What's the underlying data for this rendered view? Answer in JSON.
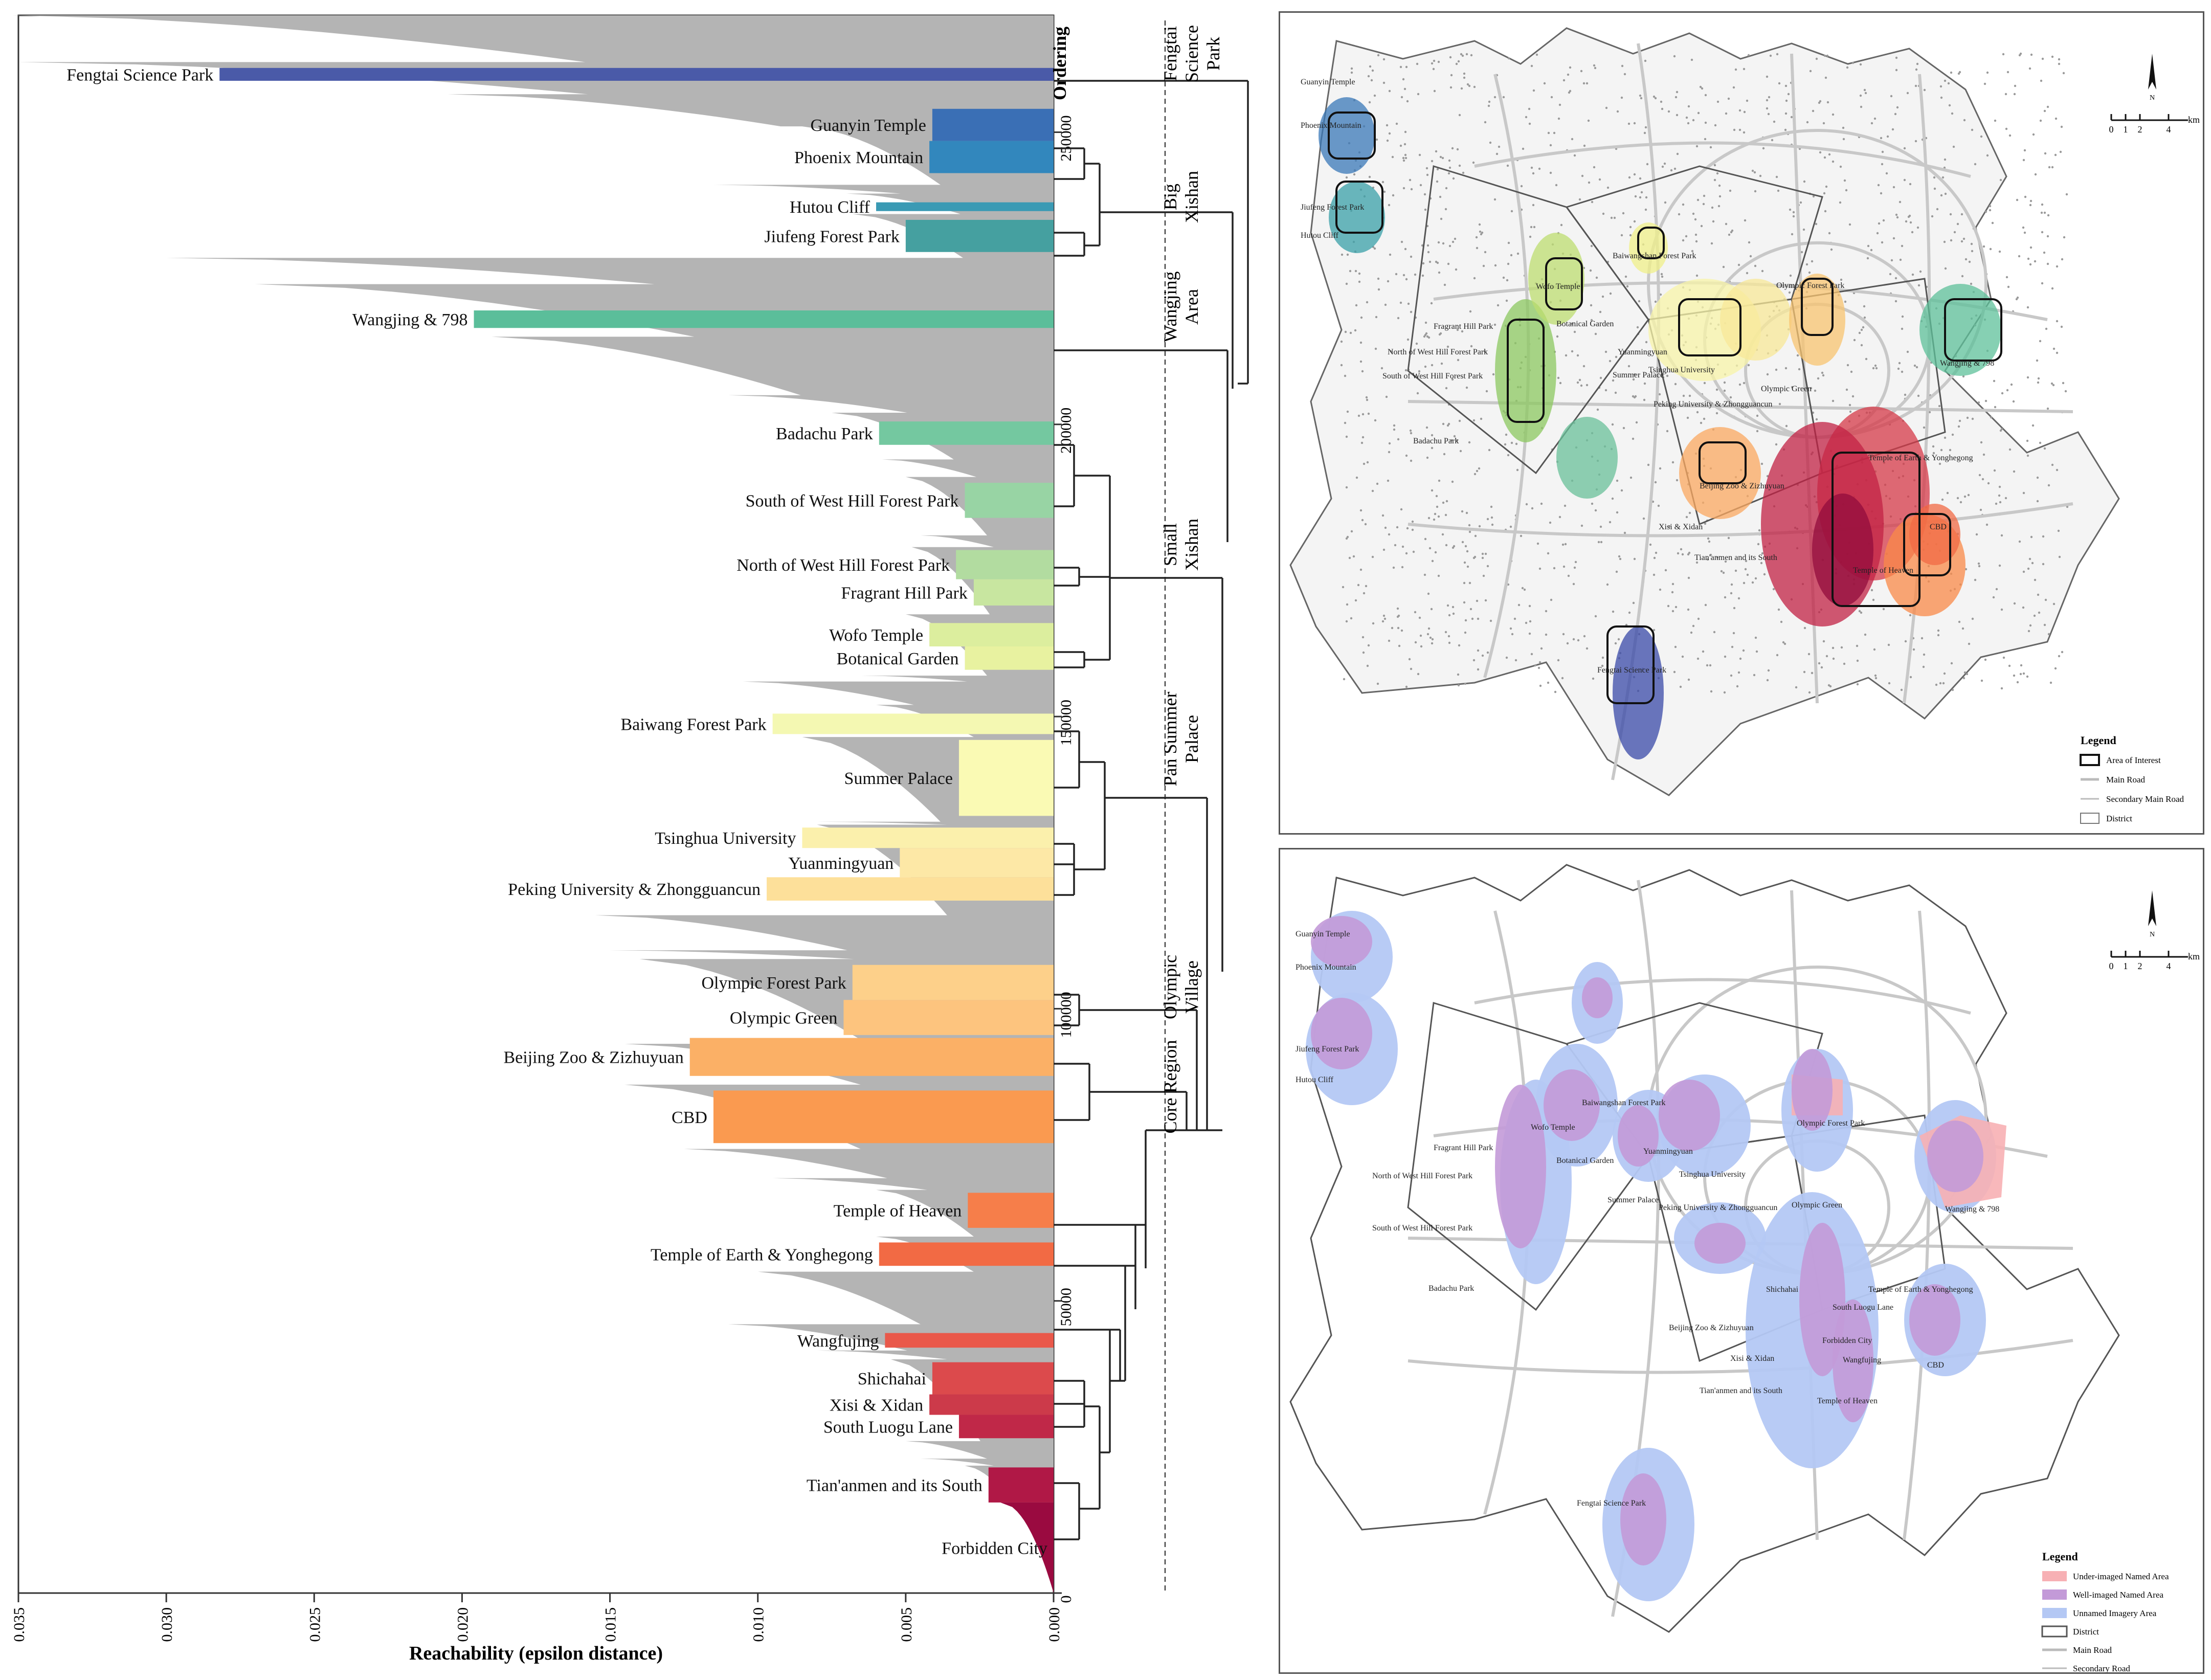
{
  "chart_data": {
    "type": "bar",
    "orientation": "horizontal",
    "xlabel": "Reachability (epsilon distance)",
    "xlim": [
      0.035,
      0.0
    ],
    "x_ticks": [
      "0.035",
      "0.030",
      "0.025",
      "0.020",
      "0.015",
      "0.010",
      "0.005",
      "0.000"
    ],
    "ordering_label": "Ordering",
    "ordering_ticks": [
      "0",
      "50000",
      "100000",
      "150000",
      "200000",
      "250000"
    ],
    "ordering_max": 270000,
    "background_color": "#b4b4b4",
    "clusters": [
      {
        "name": "Fengtai Science Park",
        "start": 258800,
        "end": 261000,
        "reach": 0.0282,
        "color": "#4a5aa8"
      },
      {
        "name": "Guanyin Temple",
        "start": 248500,
        "end": 254000,
        "reach": 0.0041,
        "color": "#3a6fb5"
      },
      {
        "name": "Phoenix Mountain",
        "start": 243000,
        "end": 248500,
        "reach": 0.0042,
        "color": "#3287bd"
      },
      {
        "name": "Hutou Cliff",
        "start": 236500,
        "end": 238000,
        "reach": 0.006,
        "color": "#3a9ab4"
      },
      {
        "name": "Jiufeng Forest Park",
        "start": 229500,
        "end": 235000,
        "reach": 0.005,
        "color": "#45a0a0"
      },
      {
        "name": "Wangjing & 798",
        "start": 216500,
        "end": 219500,
        "reach": 0.0196,
        "color": "#5bbe9a"
      },
      {
        "name": "Badachu Park",
        "start": 196500,
        "end": 200500,
        "reach": 0.0059,
        "color": "#74c8a0"
      },
      {
        "name": "South of West Hill Forest Park",
        "start": 184000,
        "end": 190000,
        "reach": 0.003,
        "color": "#98d4a4"
      },
      {
        "name": "North of West Hill Forest Park",
        "start": 173500,
        "end": 178500,
        "reach": 0.0033,
        "color": "#b2dca0"
      },
      {
        "name": "Fragrant Hill Park",
        "start": 169000,
        "end": 173500,
        "reach": 0.0027,
        "color": "#c8e6a0"
      },
      {
        "name": "Wofo Temple",
        "start": 162000,
        "end": 166000,
        "reach": 0.0042,
        "color": "#dcee9e"
      },
      {
        "name": "Botanical Garden",
        "start": 158000,
        "end": 162000,
        "reach": 0.003,
        "color": "#e8f2a0"
      },
      {
        "name": "Baiwang Forest Park",
        "start": 147000,
        "end": 150500,
        "reach": 0.0095,
        "color": "#f4f8b2"
      },
      {
        "name": "Summer Palace",
        "start": 133000,
        "end": 146000,
        "reach": 0.0032,
        "color": "#fafab4"
      },
      {
        "name": "Tsinghua University",
        "start": 127500,
        "end": 131000,
        "reach": 0.0085,
        "color": "#fbf0ac"
      },
      {
        "name": "Yuanmingyuan",
        "start": 122500,
        "end": 127500,
        "reach": 0.0052,
        "color": "#fde8a6"
      },
      {
        "name": "Peking University & Zhongguancun",
        "start": 118500,
        "end": 122500,
        "reach": 0.0097,
        "color": "#fde09a"
      },
      {
        "name": "Olympic Forest Park",
        "start": 101500,
        "end": 107500,
        "reach": 0.0068,
        "color": "#fdd08a"
      },
      {
        "name": "Olympic Green",
        "start": 95500,
        "end": 101500,
        "reach": 0.0071,
        "color": "#fdc47e"
      },
      {
        "name": "Beijing Zoo & Zizhuyuan",
        "start": 88500,
        "end": 95000,
        "reach": 0.0123,
        "color": "#fbb066"
      },
      {
        "name": "CBD",
        "start": 77000,
        "end": 86000,
        "reach": 0.0115,
        "color": "#fa9a50"
      },
      {
        "name": "Temple of Heaven",
        "start": 62500,
        "end": 68500,
        "reach": 0.0029,
        "color": "#f67e4a"
      },
      {
        "name": "Temple of Earth & Yonghegong",
        "start": 56000,
        "end": 60000,
        "reach": 0.0059,
        "color": "#f26a44"
      },
      {
        "name": "Wangfujing",
        "start": 42000,
        "end": 44500,
        "reach": 0.0057,
        "color": "#e9584a"
      },
      {
        "name": "Shichahai",
        "start": 34000,
        "end": 39500,
        "reach": 0.0041,
        "color": "#dc4a4c"
      },
      {
        "name": "Xisi & Xidan",
        "start": 30500,
        "end": 34000,
        "reach": 0.0042,
        "color": "#cc3a4a"
      },
      {
        "name": "South Luogu Lane",
        "start": 26500,
        "end": 30500,
        "reach": 0.0032,
        "color": "#c02848"
      },
      {
        "name": "Tian'anmen and its South",
        "start": 15500,
        "end": 21500,
        "reach": 0.0022,
        "color": "#b01846"
      },
      {
        "name": "Forbidden City",
        "start": 0,
        "end": 15500,
        "reach": 0.0,
        "color": "#9a0a40"
      }
    ],
    "groups": [
      {
        "name": "Fengtai Science Park"
      },
      {
        "name": "Big Xishan"
      },
      {
        "name": "Wangjing Area"
      },
      {
        "name": "Small Xishan"
      },
      {
        "name": "Pan Summer Palace"
      },
      {
        "name": "Olympic Village"
      },
      {
        "name": "Core Region"
      }
    ]
  },
  "map_top": {
    "legend_title": "Legend",
    "legend_items": [
      "Area of Interest",
      "Main Road",
      "Secondary Main Road",
      "District"
    ],
    "scale_labels": [
      "0",
      "1",
      "2",
      "4"
    ],
    "scale_unit": "km",
    "north": "N",
    "labels": [
      "Guanyin Temple",
      "Phoenix Mountain",
      "Jiufeng Forest Park",
      "Hutou Cliff",
      "Baiwangshan Forest Park",
      "Olympic Forest Park",
      "Wofo Temple",
      "Fragrant Hill Park",
      "Botanical Garden",
      "Yuanmingyuan",
      "Summer Palace",
      "Tsinghua University",
      "North of West Hill Forest Park",
      "South of West Hill Forest Park",
      "Peking University & Zhongguancun",
      "Olympic Green",
      "Wangjing & 798",
      "Badachu Park",
      "Temple of Earth & Yonghegong",
      "Beijing Zoo & Zizhuyuan",
      "Xisi & Xidan",
      "CBD",
      "Tian'anmen and its South",
      "Temple of Heaven",
      "Fengtai Science Park"
    ]
  },
  "map_bottom": {
    "legend_title": "Legend",
    "legend_items": [
      "Under-imaged Named Area",
      "Well-imaged Named Area",
      "Unnamed Imagery Area",
      "District",
      "Main Road",
      "Secondary Road"
    ],
    "scale_labels": [
      "0",
      "1",
      "2",
      "4"
    ],
    "scale_unit": "km",
    "north": "N",
    "labels": [
      "Guanyin Temple",
      "Phoenix Mountain",
      "Jiufeng Forest Park",
      "Hutou Cliff",
      "Baiwangshan Forest Park",
      "Olympic Forest Park",
      "Wofo Temple",
      "Fragrant Hill Park",
      "Botanical Garden",
      "Yuanmingyuan",
      "Tsinghua University",
      "North of West Hill Forest Park",
      "Summer Palace",
      "Peking University & Zhongguancun",
      "Olympic Green",
      "Wangjing & 798",
      "South of West Hill Forest Park",
      "Badachu Park",
      "Shichahai",
      "Temple of Earth & Yonghegong",
      "South Luogu Lane",
      "Beijing Zoo & Zizhuyuan",
      "Forbidden City",
      "Xisi & Xidan",
      "Wangfujing",
      "CBD",
      "Tian'anmen and its South",
      "Temple of Heaven",
      "Fengtai Science Park"
    ]
  },
  "colors": {
    "under_imaged": "#f7b0b4",
    "well_imaged": "#c39ad8",
    "unnamed": "#b4c8f4",
    "road": "#c8c8c8"
  }
}
